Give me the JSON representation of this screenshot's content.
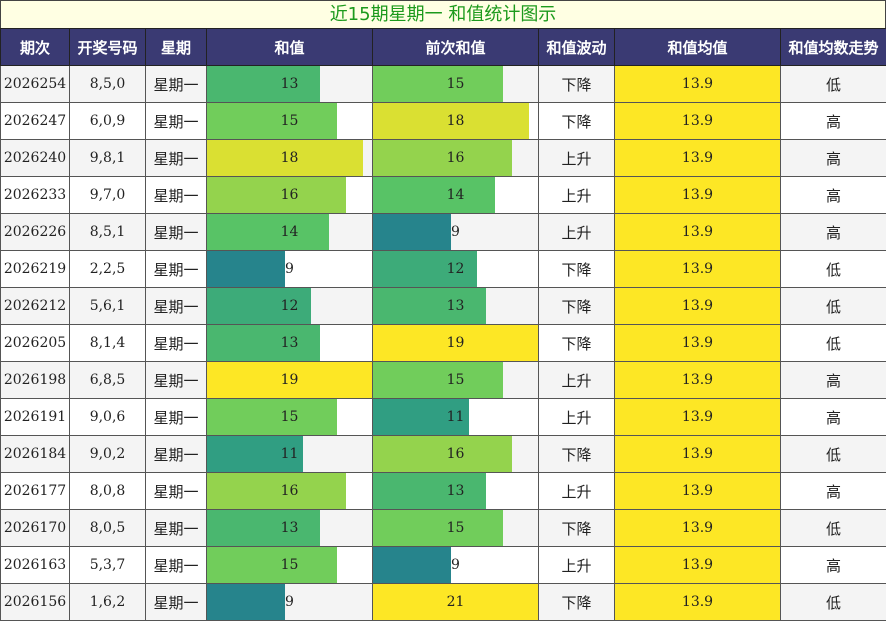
{
  "title": "近15期星期一 和值统计图示",
  "headers": [
    "期次",
    "开奖号码",
    "星期",
    "和值",
    "前次和值",
    "和值波动",
    "和值均值",
    "和值均数走势"
  ],
  "chart_data": {
    "type": "table",
    "title": "近15期星期一 和值统计图示",
    "bar_scale_max": 19,
    "rows": [
      {
        "period": "2026254",
        "numbers": "8,5,0",
        "weekday": "星期一",
        "sum": 13,
        "prev_sum": 15,
        "trend": "下降",
        "avg": "13.9",
        "avg_trend": "低"
      },
      {
        "period": "2026247",
        "numbers": "6,0,9",
        "weekday": "星期一",
        "sum": 15,
        "prev_sum": 18,
        "trend": "下降",
        "avg": "13.9",
        "avg_trend": "高"
      },
      {
        "period": "2026240",
        "numbers": "9,8,1",
        "weekday": "星期一",
        "sum": 18,
        "prev_sum": 16,
        "trend": "上升",
        "avg": "13.9",
        "avg_trend": "高"
      },
      {
        "period": "2026233",
        "numbers": "9,7,0",
        "weekday": "星期一",
        "sum": 16,
        "prev_sum": 14,
        "trend": "上升",
        "avg": "13.9",
        "avg_trend": "高"
      },
      {
        "period": "2026226",
        "numbers": "8,5,1",
        "weekday": "星期一",
        "sum": 14,
        "prev_sum": 9,
        "trend": "上升",
        "avg": "13.9",
        "avg_trend": "高"
      },
      {
        "period": "2026219",
        "numbers": "2,2,5",
        "weekday": "星期一",
        "sum": 9,
        "prev_sum": 12,
        "trend": "下降",
        "avg": "13.9",
        "avg_trend": "低"
      },
      {
        "period": "2026212",
        "numbers": "5,6,1",
        "weekday": "星期一",
        "sum": 12,
        "prev_sum": 13,
        "trend": "下降",
        "avg": "13.9",
        "avg_trend": "低"
      },
      {
        "period": "2026205",
        "numbers": "8,1,4",
        "weekday": "星期一",
        "sum": 13,
        "prev_sum": 19,
        "trend": "下降",
        "avg": "13.9",
        "avg_trend": "低"
      },
      {
        "period": "2026198",
        "numbers": "6,8,5",
        "weekday": "星期一",
        "sum": 19,
        "prev_sum": 15,
        "trend": "上升",
        "avg": "13.9",
        "avg_trend": "高"
      },
      {
        "period": "2026191",
        "numbers": "9,0,6",
        "weekday": "星期一",
        "sum": 15,
        "prev_sum": 11,
        "trend": "上升",
        "avg": "13.9",
        "avg_trend": "高"
      },
      {
        "period": "2026184",
        "numbers": "9,0,2",
        "weekday": "星期一",
        "sum": 11,
        "prev_sum": 16,
        "trend": "下降",
        "avg": "13.9",
        "avg_trend": "低"
      },
      {
        "period": "2026177",
        "numbers": "8,0,8",
        "weekday": "星期一",
        "sum": 16,
        "prev_sum": 13,
        "trend": "上升",
        "avg": "13.9",
        "avg_trend": "高"
      },
      {
        "period": "2026170",
        "numbers": "8,0,5",
        "weekday": "星期一",
        "sum": 13,
        "prev_sum": 15,
        "trend": "下降",
        "avg": "13.9",
        "avg_trend": "低"
      },
      {
        "period": "2026163",
        "numbers": "5,3,7",
        "weekday": "星期一",
        "sum": 15,
        "prev_sum": 9,
        "trend": "上升",
        "avg": "13.9",
        "avg_trend": "高"
      },
      {
        "period": "2026156",
        "numbers": "1,6,2",
        "weekday": "星期一",
        "sum": 9,
        "prev_sum": 21,
        "trend": "下降",
        "avg": "13.9",
        "avg_trend": "低"
      }
    ]
  }
}
